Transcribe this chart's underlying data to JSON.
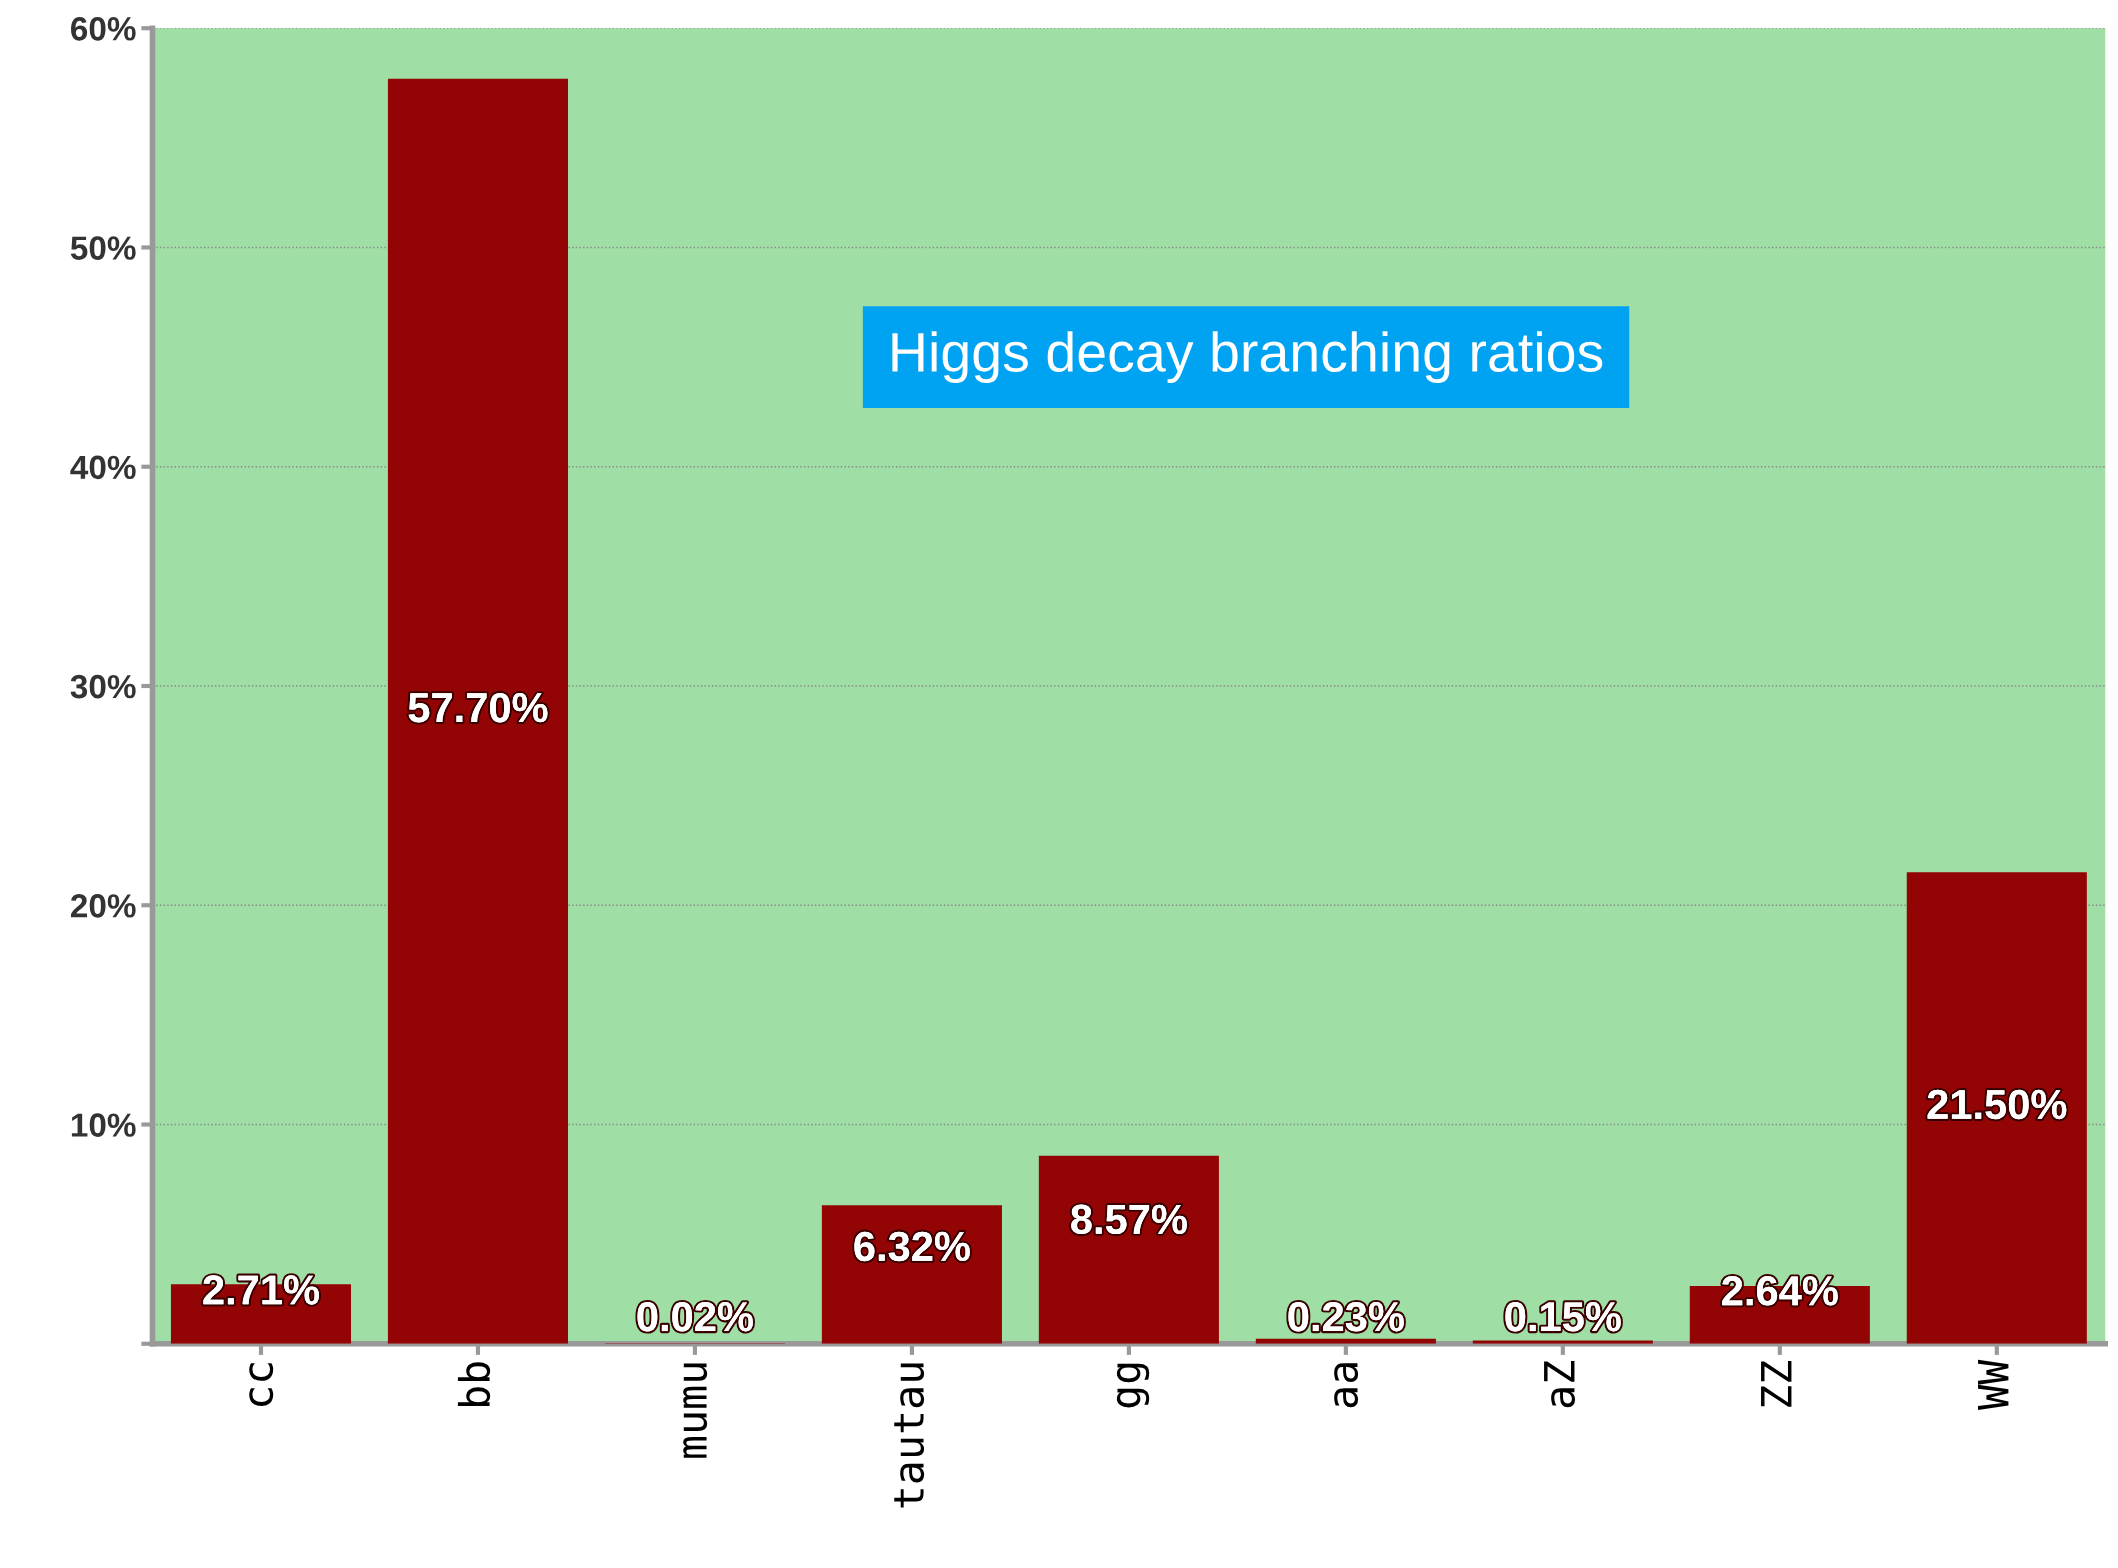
{
  "chart_data": {
    "type": "bar",
    "annotations": [
      "Higgs decay branching ratios"
    ],
    "categories": [
      "cc",
      "bb",
      "mumu",
      "tautau",
      "gg",
      "aa",
      "aZ",
      "ZZ",
      "WW"
    ],
    "values": [
      2.71,
      57.7,
      0.02,
      6.32,
      8.57,
      0.23,
      0.15,
      2.64,
      21.5
    ],
    "value_labels": [
      "2.71%",
      "57.70%",
      "0.02%",
      "6.32%",
      "8.57%",
      "0.23%",
      "0.15%",
      "2.64%",
      "21.50%"
    ],
    "color": "#930505",
    "ylim": [
      0,
      60
    ],
    "yticks": [
      {
        "value": 0,
        "label": null
      },
      {
        "value": 10,
        "label": "10%"
      },
      {
        "value": 20,
        "label": "20%"
      },
      {
        "value": 30,
        "label": "30%"
      },
      {
        "value": 40,
        "label": "40%"
      },
      {
        "value": 50,
        "label": "50%"
      },
      {
        "value": 60,
        "label": "60%"
      }
    ],
    "grid": "y",
    "legend": false
  }
}
